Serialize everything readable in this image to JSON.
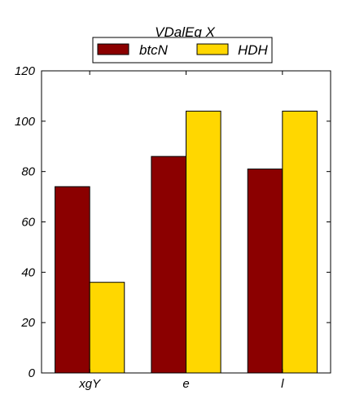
{
  "chart_data": {
    "type": "bar",
    "title": "VDalEq X",
    "xlabel": "",
    "ylabel": "",
    "categories": [
      "xgY",
      "e",
      "l"
    ],
    "series": [
      {
        "name": "btcN",
        "values": [
          74,
          86,
          81
        ],
        "color": "#8b0000"
      },
      {
        "name": "HDH",
        "values": [
          36,
          104,
          104
        ],
        "color": "#ffd700"
      }
    ],
    "ylim": [
      0,
      120
    ],
    "yticks": [
      0,
      20,
      40,
      60,
      80,
      100,
      120
    ],
    "grid": false,
    "legend_position": "top-center"
  }
}
